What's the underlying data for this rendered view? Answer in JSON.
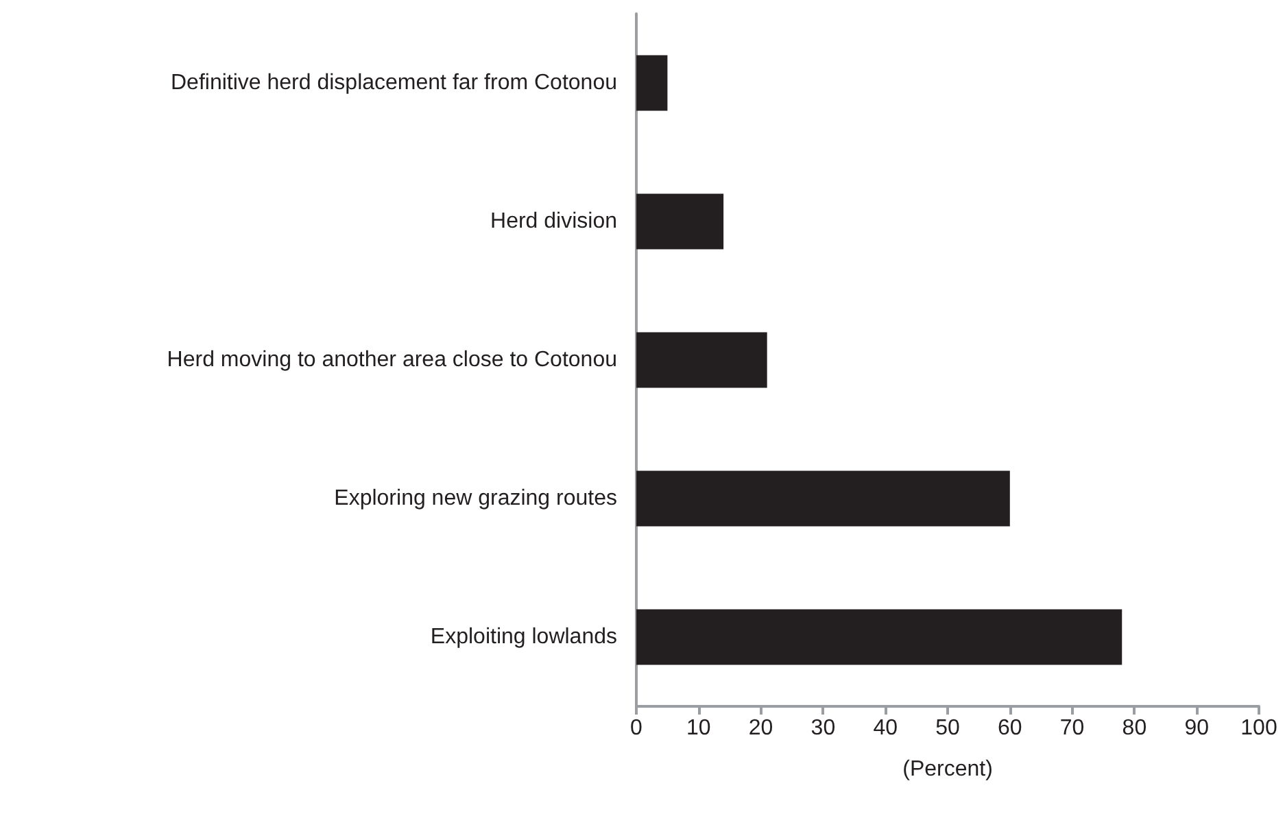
{
  "chart_data": {
    "type": "bar",
    "orientation": "horizontal",
    "xlabel": "(Percent)",
    "categories": [
      "Definitive herd displacement far from Cotonou",
      "Herd division",
      "Herd moving to another area close to Cotonou",
      "Exploring new grazing routes",
      "Exploiting lowlands"
    ],
    "values": [
      5,
      14,
      21,
      60,
      78
    ],
    "color": "#231f20",
    "xlim": [
      0,
      100
    ],
    "xticks": [
      0,
      10,
      20,
      30,
      40,
      50,
      60,
      70,
      80,
      90,
      100
    ],
    "grid": false
  }
}
